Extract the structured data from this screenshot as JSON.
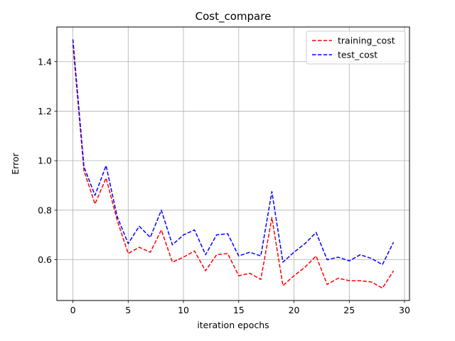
{
  "chart_data": {
    "type": "line",
    "title": "Cost_compare",
    "xlabel": "iteration epochs",
    "ylabel": "Error",
    "xlim": [
      -1.45,
      30.45
    ],
    "ylim": [
      0.435,
      1.54
    ],
    "xticks": [
      0,
      5,
      10,
      15,
      20,
      25,
      30
    ],
    "yticks": [
      0.6,
      0.8,
      1.0,
      1.2,
      1.4
    ],
    "xtick_labels": [
      "0",
      "5",
      "10",
      "15",
      "20",
      "25",
      "30"
    ],
    "ytick_labels": [
      "0.6",
      "0.8",
      "1.0",
      "1.2",
      "1.4"
    ],
    "grid": true,
    "legend": "top-right",
    "x": [
      0,
      1,
      2,
      3,
      4,
      5,
      6,
      7,
      8,
      9,
      10,
      11,
      12,
      13,
      14,
      15,
      16,
      17,
      18,
      19,
      20,
      21,
      22,
      23,
      24,
      25,
      26,
      27,
      28,
      29
    ],
    "series": [
      {
        "name": "training_cost",
        "color": "#ff0000",
        "dash": "dashed",
        "values": [
          1.47,
          0.96,
          0.825,
          0.93,
          0.76,
          0.625,
          0.65,
          0.63,
          0.72,
          0.59,
          0.61,
          0.635,
          0.555,
          0.62,
          0.625,
          0.535,
          0.545,
          0.52,
          0.77,
          0.495,
          0.535,
          0.57,
          0.615,
          0.5,
          0.525,
          0.515,
          0.515,
          0.51,
          0.485,
          0.555
        ]
      },
      {
        "name": "test_cost",
        "color": "#0000ff",
        "dash": "dashed",
        "values": [
          1.49,
          0.975,
          0.86,
          0.98,
          0.775,
          0.665,
          0.735,
          0.69,
          0.8,
          0.66,
          0.7,
          0.72,
          0.62,
          0.7,
          0.705,
          0.615,
          0.63,
          0.615,
          0.875,
          0.59,
          0.63,
          0.665,
          0.71,
          0.6,
          0.61,
          0.595,
          0.62,
          0.605,
          0.58,
          0.67
        ]
      }
    ]
  }
}
